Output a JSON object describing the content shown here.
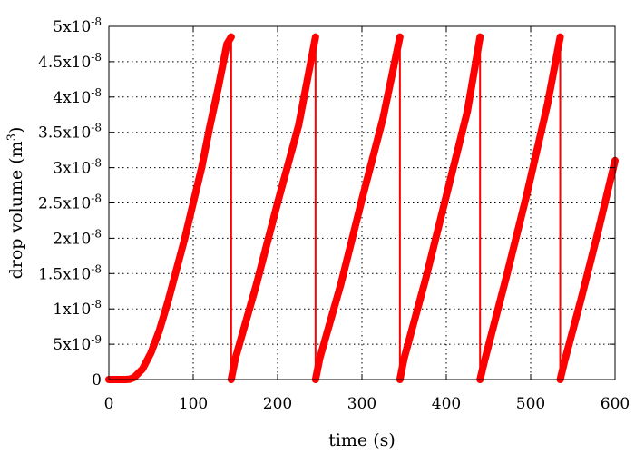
{
  "chart_data": {
    "type": "line",
    "title": "",
    "xlabel": "time (s)",
    "ylabel_main": "drop volume (m",
    "ylabel_sup": "3",
    "ylabel_close": ")",
    "xlim": [
      0,
      600
    ],
    "ylim": [
      0,
      5e-08
    ],
    "grid": true,
    "legend": "none",
    "line_color": "#ff0000",
    "x_ticks": [
      {
        "value": 0,
        "label": "0"
      },
      {
        "value": 100,
        "label": "100"
      },
      {
        "value": 200,
        "label": "200"
      },
      {
        "value": 300,
        "label": "300"
      },
      {
        "value": 400,
        "label": "400"
      },
      {
        "value": 500,
        "label": "500"
      },
      {
        "value": 600,
        "label": "600"
      }
    ],
    "y_ticks": [
      {
        "value": 0,
        "mant": "0",
        "exp": ""
      },
      {
        "value": 5e-09,
        "mant": "5x10",
        "exp": "-9"
      },
      {
        "value": 1e-08,
        "mant": "1x10",
        "exp": "-8"
      },
      {
        "value": 1.5e-08,
        "mant": "1.5x10",
        "exp": "-8"
      },
      {
        "value": 2e-08,
        "mant": "2x10",
        "exp": "-8"
      },
      {
        "value": 2.5e-08,
        "mant": "2.5x10",
        "exp": "-8"
      },
      {
        "value": 3e-08,
        "mant": "3x10",
        "exp": "-8"
      },
      {
        "value": 3.5e-08,
        "mant": "3.5x10",
        "exp": "-8"
      },
      {
        "value": 4e-08,
        "mant": "4x10",
        "exp": "-8"
      },
      {
        "value": 4.5e-08,
        "mant": "4.5x10",
        "exp": "-8"
      },
      {
        "value": 5e-08,
        "mant": "5x10",
        "exp": "-8"
      }
    ],
    "series": [
      {
        "x": [
          0,
          20,
          25,
          30,
          40,
          50,
          60,
          70,
          80,
          90,
          100,
          110,
          120,
          130,
          140,
          145,
          145,
          150,
          175,
          200,
          225,
          245,
          245,
          250,
          275,
          300,
          325,
          345,
          345,
          350,
          375,
          400,
          425,
          440,
          440,
          445,
          470,
          495,
          520,
          535,
          535,
          540,
          560,
          580,
          600
        ],
        "y": [
          0,
          0,
          5e-11,
          3e-10,
          1.5e-09,
          3.8e-09,
          7e-09,
          1.1e-08,
          1.55e-08,
          2e-08,
          2.5e-08,
          3e-08,
          3.6e-08,
          4.15e-08,
          4.75e-08,
          4.85e-08,
          0,
          3e-09,
          1.35e-08,
          2.5e-08,
          3.6e-08,
          4.85e-08,
          0,
          3e-09,
          1.35e-08,
          2.55e-08,
          3.7e-08,
          4.85e-08,
          0,
          3e-09,
          1.4e-08,
          2.6e-08,
          3.8e-08,
          4.85e-08,
          0,
          2.5e-09,
          1.4e-08,
          2.6e-08,
          3.9e-08,
          4.85e-08,
          0,
          2.5e-09,
          1.15e-08,
          2.1e-08,
          3.1e-08
        ]
      }
    ]
  }
}
